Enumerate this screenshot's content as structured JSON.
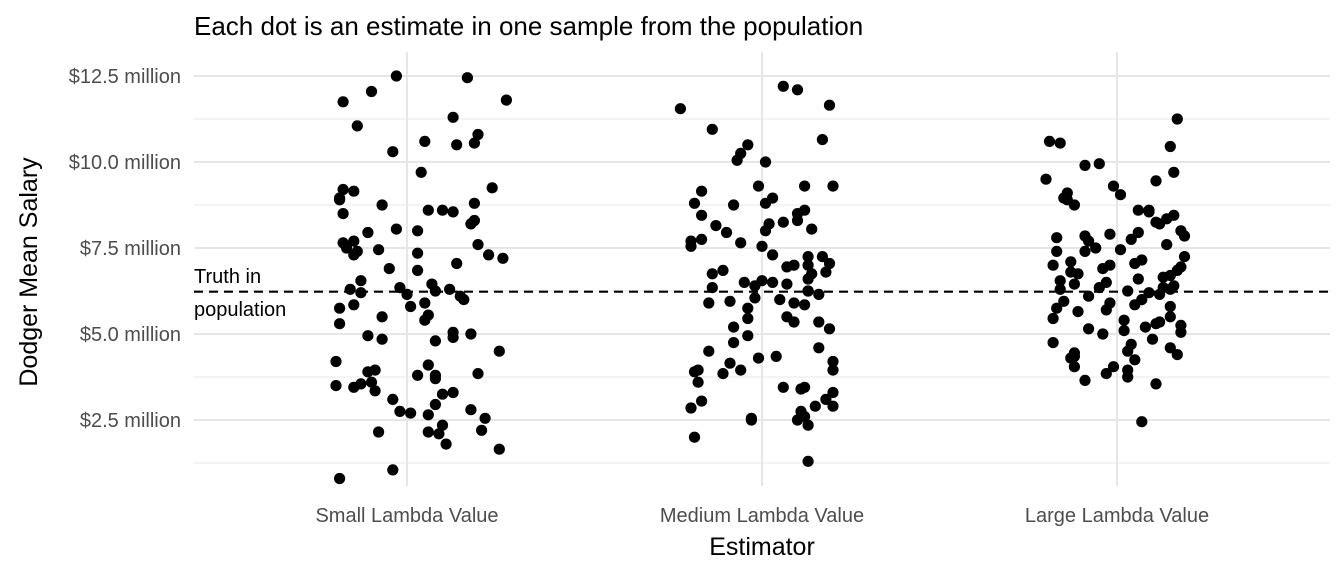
{
  "chart_data": {
    "type": "scatter",
    "title": "Each dot is an estimate in one sample from the population",
    "xlabel": "Estimator",
    "ylabel": "Dodger Mean Salary",
    "categories": [
      "Small Lambda Value",
      "Medium Lambda Value",
      "Large Lambda Value"
    ],
    "y_ticks": [
      2.5,
      5.0,
      7.5,
      10.0,
      12.5
    ],
    "y_tick_labels": [
      "$2.5 million",
      "$5.0 million",
      "$7.5 million",
      "$10.0 million",
      "$12.5 million"
    ],
    "ylim": [
      0.8,
      12.9
    ],
    "grid": true,
    "reference_line": {
      "value": 6.23,
      "style": "dashed",
      "label": [
        "Truth in",
        "population"
      ]
    },
    "series": [
      {
        "category": "Small Lambda Value",
        "offsets": [
          -0.03,
          0.17,
          -0.1,
          -0.18,
          0.28,
          0.13,
          -0.14,
          0.2,
          0.05,
          0.19,
          0.14,
          -0.04,
          0.04,
          0.24,
          -0.18,
          -0.15,
          -0.19,
          -0.19,
          0.19,
          -0.07,
          0.1,
          0.06,
          0.13,
          -0.18,
          0.19,
          0.18,
          -0.03,
          0.03,
          -0.11,
          -0.15,
          -0.18,
          0.2,
          -0.17,
          -0.08,
          -0.14,
          0.03,
          0.23,
          -0.15,
          0.27,
          0.14,
          -0.05,
          0.03,
          -0.13,
          0.07,
          -0.02,
          0.12,
          -0.16,
          0.08,
          -0.13,
          0.0,
          0.15,
          0.16,
          0.05,
          -0.15,
          0.01,
          -0.19,
          0.06,
          -0.07,
          0.05,
          -0.19,
          0.13,
          0.18,
          -0.11,
          0.13,
          -0.07,
          0.08,
          0.26,
          -0.2,
          0.06,
          -0.09,
          -0.11,
          0.2,
          0.03,
          0.08,
          0.08,
          -0.1,
          -0.13,
          -0.2,
          -0.15,
          -0.09,
          0.13,
          0.1,
          -0.04,
          0.08,
          0.18,
          -0.02,
          0.01,
          0.06,
          0.22,
          0.1,
          0.21,
          -0.08,
          0.06,
          0.09,
          0.26,
          0.11,
          -0.04,
          -0.19
        ],
        "values": [
          12.5,
          12.45,
          12.05,
          11.75,
          11.8,
          11.3,
          11.05,
          10.8,
          10.6,
          10.55,
          10.5,
          10.3,
          9.7,
          9.25,
          9.2,
          9.15,
          8.95,
          8.9,
          8.8,
          8.75,
          8.6,
          8.6,
          8.55,
          8.5,
          8.3,
          8.2,
          8.05,
          8.0,
          7.95,
          7.7,
          7.65,
          7.6,
          7.5,
          7.45,
          7.4,
          7.35,
          7.3,
          7.3,
          7.2,
          7.05,
          6.9,
          6.85,
          6.55,
          6.45,
          6.35,
          6.3,
          6.3,
          6.25,
          6.2,
          6.15,
          6.1,
          6.0,
          5.9,
          5.85,
          5.8,
          5.75,
          5.55,
          5.5,
          5.4,
          5.3,
          5.05,
          5.0,
          4.95,
          4.9,
          4.85,
          4.8,
          4.5,
          4.2,
          4.1,
          3.95,
          3.9,
          3.85,
          3.8,
          3.8,
          3.7,
          3.6,
          3.55,
          3.5,
          3.45,
          3.35,
          3.3,
          3.25,
          3.1,
          2.95,
          2.8,
          2.75,
          2.7,
          2.65,
          2.55,
          2.35,
          2.2,
          2.15,
          2.15,
          2.1,
          1.65,
          1.8,
          1.05,
          0.8
        ]
      },
      {
        "category": "Medium Lambda Value",
        "offsets": [
          0.06,
          0.1,
          -0.23,
          0.19,
          -0.14,
          0.17,
          -0.04,
          -0.06,
          -0.07,
          0.01,
          0.2,
          -0.17,
          0.12,
          -0.08,
          0.03,
          -0.01,
          0.12,
          0.01,
          0.1,
          0.02,
          -0.17,
          -0.13,
          0.1,
          -0.19,
          0.14,
          -0.17,
          0.01,
          -0.1,
          -0.2,
          0.03,
          -0.06,
          -0.2,
          0.0,
          0.17,
          0.19,
          -0.11,
          0.13,
          0.07,
          -0.14,
          0.14,
          0.03,
          0.0,
          0.07,
          0.13,
          -0.14,
          -0.02,
          0.16,
          -0.09,
          -0.02,
          0.09,
          -0.05,
          0.05,
          0.07,
          0.12,
          -0.15,
          -0.04,
          0.16,
          0.19,
          0.09,
          -0.04,
          -0.08,
          -0.04,
          0.16,
          0.04,
          -0.15,
          0.2,
          -0.09,
          -0.19,
          -0.06,
          -0.11,
          -0.18,
          0.11,
          0.06,
          0.2,
          0.18,
          -0.17,
          0.15,
          -0.2,
          0.11,
          0.2,
          0.12,
          -0.03,
          0.1,
          -0.03,
          0.13,
          -0.19,
          0.13,
          0.2,
          0.12,
          -0.18,
          -0.01,
          -0.08,
          0.18,
          0.13,
          0.13,
          0.09,
          0.13,
          0.06
        ],
        "values": [
          12.2,
          12.1,
          11.55,
          11.65,
          10.95,
          10.65,
          10.5,
          10.25,
          10.05,
          10.0,
          9.3,
          9.15,
          9.3,
          8.75,
          8.95,
          9.3,
          8.6,
          8.8,
          8.5,
          8.2,
          8.45,
          8.15,
          8.3,
          8.8,
          8.05,
          7.75,
          8.0,
          7.95,
          7.7,
          7.3,
          7.65,
          7.55,
          7.55,
          7.25,
          7.05,
          6.85,
          7.0,
          6.95,
          6.75,
          6.75,
          6.5,
          6.55,
          6.45,
          6.25,
          6.35,
          6.05,
          6.15,
          5.95,
          6.4,
          5.9,
          6.5,
          6.0,
          5.5,
          5.85,
          5.9,
          5.45,
          5.35,
          5.15,
          5.35,
          5.75,
          5.2,
          4.95,
          4.6,
          4.35,
          4.5,
          4.2,
          4.15,
          3.9,
          3.95,
          3.85,
          3.6,
          3.4,
          3.45,
          3.3,
          3.1,
          3.05,
          2.9,
          2.85,
          2.75,
          2.9,
          2.6,
          2.55,
          2.5,
          2.5,
          2.35,
          2.0,
          1.3,
          3.95,
          3.45,
          3.95,
          4.3,
          4.75,
          6.8,
          6.6,
          7.25,
          7.0,
          6.25,
          8.25
        ]
      },
      {
        "category": "Large Lambda Value",
        "offsets": [
          0.17,
          -0.19,
          -0.16,
          0.15,
          -0.05,
          0.16,
          0.11,
          -0.2,
          -0.01,
          -0.14,
          0.01,
          -0.15,
          -0.14,
          0.09,
          0.09,
          0.16,
          0.14,
          0.11,
          0.12,
          0.18,
          0.06,
          -0.02,
          -0.09,
          0.19,
          -0.17,
          0.04,
          -0.08,
          0.14,
          -0.06,
          0.01,
          -0.17,
          -0.09,
          0.19,
          0.07,
          -0.13,
          0.05,
          -0.02,
          -0.18,
          0.18,
          -0.04,
          0.17,
          -0.13,
          -0.11,
          0.15,
          0.13,
          0.06,
          -0.03,
          -0.12,
          0.16,
          -0.05,
          0.13,
          -0.16,
          0.03,
          0.09,
          0.12,
          -0.08,
          0.07,
          -0.15,
          -0.02,
          0.05,
          0.15,
          -0.17,
          -0.03,
          -0.11,
          0.15,
          -0.18,
          0.02,
          0.12,
          0.11,
          0.08,
          -0.08,
          0.02,
          0.18,
          -0.04,
          0.1,
          -0.18,
          0.04,
          0.15,
          0.03,
          -0.12,
          0.17,
          -0.12,
          -0.13,
          0.05,
          -0.12,
          0.03,
          -0.03,
          0.03,
          -0.09,
          0.11,
          0.07,
          -0.09,
          -0.12,
          0.06,
          0.15,
          -0.16,
          0.18,
          -0.01
        ],
        "values": [
          11.25,
          10.6,
          10.55,
          10.45,
          9.95,
          9.7,
          9.45,
          9.5,
          9.3,
          9.1,
          9.05,
          8.95,
          8.9,
          8.6,
          8.55,
          8.45,
          8.35,
          8.25,
          8.2,
          8.0,
          7.95,
          7.9,
          7.85,
          7.85,
          7.8,
          7.75,
          7.7,
          7.6,
          7.5,
          7.45,
          7.4,
          7.4,
          7.25,
          7.15,
          7.1,
          7.05,
          7.0,
          7.0,
          6.95,
          6.9,
          6.85,
          6.8,
          6.75,
          6.7,
          6.65,
          6.6,
          6.5,
          6.45,
          6.4,
          6.35,
          6.35,
          6.3,
          6.25,
          6.2,
          6.15,
          6.1,
          6.0,
          5.95,
          5.9,
          5.85,
          5.8,
          5.75,
          5.7,
          5.65,
          5.5,
          5.45,
          5.4,
          5.35,
          5.3,
          5.2,
          5.15,
          5.1,
          5.05,
          5.0,
          4.85,
          4.75,
          4.7,
          4.6,
          4.5,
          4.45,
          4.4,
          4.35,
          4.3,
          4.25,
          4.05,
          3.95,
          3.85,
          3.75,
          3.65,
          3.55,
          2.45,
          9.9,
          8.75,
          8.6,
          6.3,
          6.55,
          5.25,
          4.05
        ]
      }
    ]
  }
}
